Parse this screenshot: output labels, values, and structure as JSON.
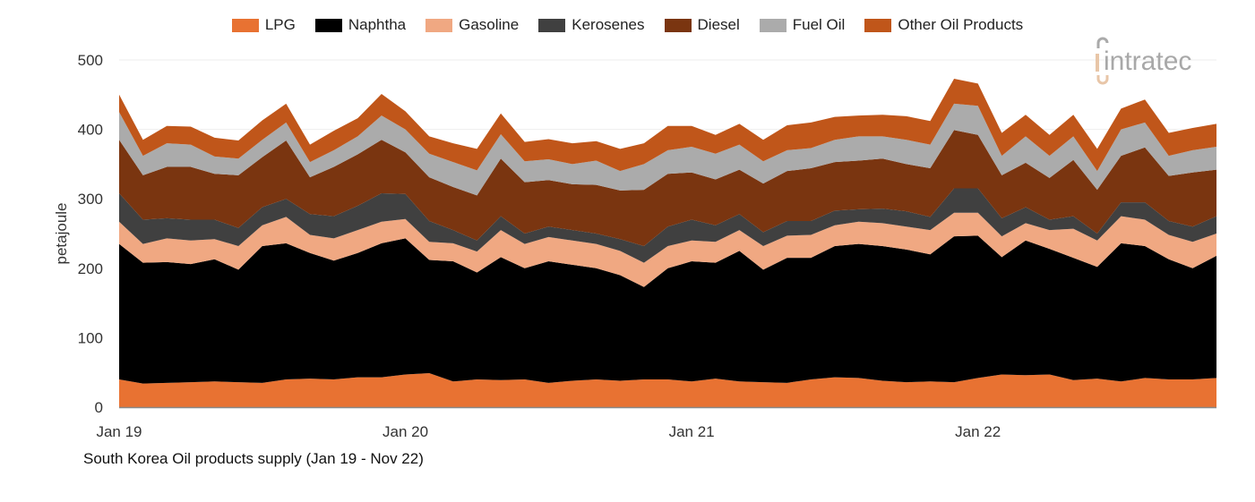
{
  "chart_data": {
    "type": "area",
    "stacked": true,
    "ylabel": "petajoule",
    "xlabel": "",
    "caption": "South Korea Oil products supply (Jan 19 - Nov 22)",
    "ylim": [
      0,
      500
    ],
    "yticks": [
      0,
      100,
      200,
      300,
      400,
      500
    ],
    "xtick_labels": [
      "Jan 19",
      "Jan 20",
      "Jan 21",
      "Jan 22"
    ],
    "legend_position": "top",
    "grid": true,
    "x": [
      "Jan 19",
      "Feb 19",
      "Mar 19",
      "Apr 19",
      "May 19",
      "Jun 19",
      "Jul 19",
      "Aug 19",
      "Sep 19",
      "Oct 19",
      "Nov 19",
      "Dec 19",
      "Jan 20",
      "Feb 20",
      "Mar 20",
      "Apr 20",
      "May 20",
      "Jun 20",
      "Jul 20",
      "Aug 20",
      "Sep 20",
      "Oct 20",
      "Nov 20",
      "Dec 20",
      "Jan 21",
      "Feb 21",
      "Mar 21",
      "Apr 21",
      "May 21",
      "Jun 21",
      "Jul 21",
      "Aug 21",
      "Sep 21",
      "Oct 21",
      "Nov 21",
      "Dec 21",
      "Jan 22",
      "Feb 22",
      "Mar 22",
      "Apr 22",
      "May 22",
      "Jun 22",
      "Jul 22",
      "Aug 22",
      "Sep 22",
      "Oct 22",
      "Nov 22"
    ],
    "series": [
      {
        "name": "LPG",
        "color": "#E87232",
        "values": [
          40,
          34,
          35,
          36,
          37,
          36,
          35,
          40,
          41,
          40,
          43,
          43,
          47,
          49,
          37,
          40,
          39,
          40,
          35,
          38,
          40,
          38,
          40,
          40,
          37,
          41,
          37,
          36,
          35,
          40,
          43,
          42,
          38,
          36,
          37,
          36,
          42,
          47,
          46,
          47,
          39,
          41,
          37,
          42,
          40,
          40,
          42
        ]
      },
      {
        "name": "Naphtha",
        "color": "#000000",
        "values": [
          195,
          174,
          174,
          170,
          176,
          162,
          197,
          196,
          181,
          171,
          179,
          193,
          196,
          163,
          173,
          154,
          177,
          160,
          175,
          167,
          160,
          152,
          133,
          160,
          173,
          167,
          188,
          162,
          180,
          175,
          189,
          193,
          194,
          191,
          183,
          210,
          205,
          169,
          194,
          181,
          176,
          161,
          199,
          190,
          173,
          160,
          176
        ]
      },
      {
        "name": "Gasoline",
        "color": "#F0A882",
        "values": [
          32,
          27,
          34,
          34,
          29,
          34,
          30,
          38,
          26,
          32,
          33,
          31,
          28,
          26,
          26,
          30,
          39,
          35,
          35,
          35,
          35,
          35,
          35,
          32,
          30,
          30,
          30,
          34,
          32,
          33,
          30,
          32,
          33,
          33,
          35,
          34,
          33,
          30,
          25,
          27,
          42,
          38,
          39,
          38,
          35,
          38,
          32
        ]
      },
      {
        "name": "Kerosenes",
        "color": "#404040",
        "values": [
          41,
          35,
          29,
          30,
          28,
          26,
          26,
          26,
          30,
          32,
          35,
          41,
          36,
          30,
          19,
          16,
          20,
          15,
          15,
          15,
          15,
          17,
          24,
          28,
          30,
          24,
          23,
          20,
          21,
          20,
          21,
          18,
          21,
          22,
          19,
          35,
          35,
          26,
          23,
          15,
          18,
          10,
          20,
          25,
          20,
          22,
          25
        ]
      },
      {
        "name": "Diesel",
        "color": "#7A3510",
        "values": [
          77,
          64,
          74,
          76,
          66,
          76,
          72,
          84,
          53,
          71,
          74,
          77,
          60,
          63,
          62,
          65,
          83,
          74,
          67,
          66,
          70,
          70,
          81,
          76,
          68,
          66,
          64,
          70,
          72,
          76,
          70,
          70,
          72,
          68,
          70,
          84,
          77,
          62,
          64,
          60,
          81,
          63,
          67,
          79,
          65,
          78,
          67
        ]
      },
      {
        "name": "Fuel Oil",
        "color": "#ABABAB",
        "values": [
          40,
          28,
          34,
          32,
          25,
          24,
          25,
          26,
          22,
          24,
          26,
          35,
          33,
          34,
          36,
          36,
          35,
          30,
          30,
          29,
          35,
          28,
          37,
          34,
          37,
          37,
          36,
          32,
          30,
          29,
          32,
          35,
          32,
          35,
          34,
          38,
          42,
          28,
          38,
          32,
          34,
          27,
          38,
          36,
          29,
          32,
          33
        ]
      },
      {
        "name": "Other Oil Products",
        "color": "#C0561A",
        "values": [
          25,
          23,
          25,
          26,
          27,
          26,
          28,
          27,
          25,
          28,
          26,
          31,
          26,
          25,
          27,
          31,
          30,
          28,
          29,
          30,
          28,
          32,
          30,
          35,
          30,
          27,
          30,
          31,
          36,
          37,
          33,
          30,
          31,
          34,
          34,
          36,
          32,
          33,
          31,
          30,
          31,
          32,
          30,
          33,
          33,
          32,
          33
        ]
      }
    ]
  },
  "logo": {
    "text": "intratec"
  }
}
